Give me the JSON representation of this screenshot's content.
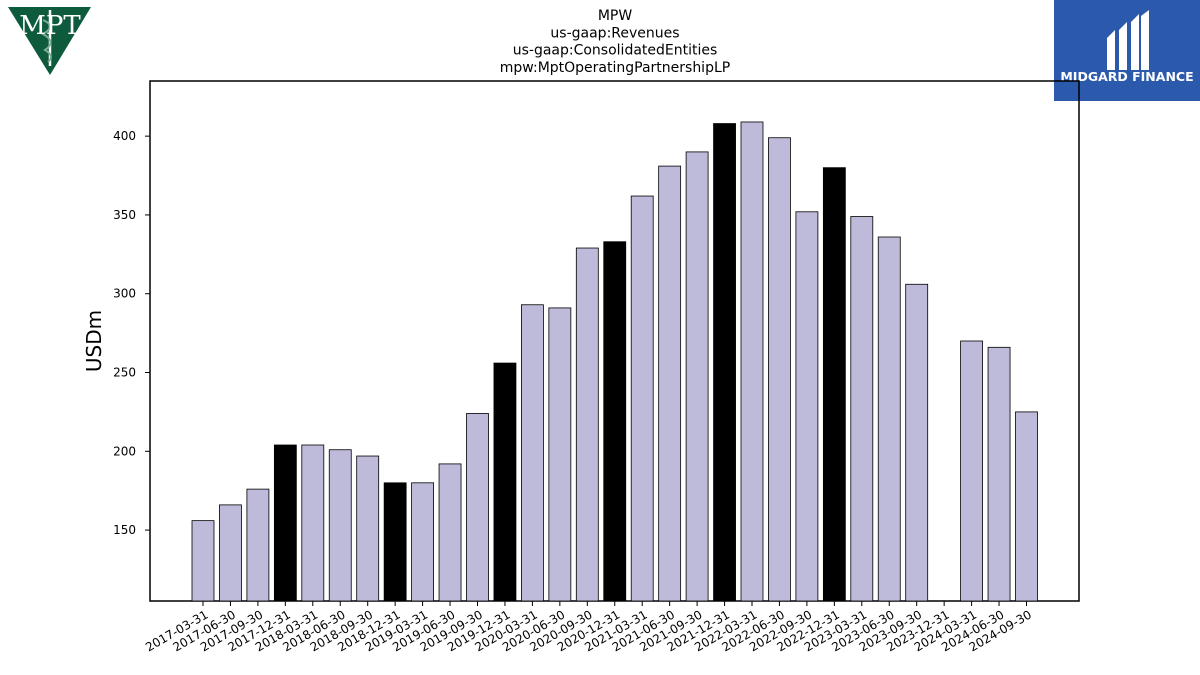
{
  "logos": {
    "left": {
      "text": "MPT",
      "color": "#0e5a3c"
    },
    "right": {
      "text": "MIDGARD FINANCE",
      "color": "#2b5aad"
    }
  },
  "colors": {
    "bar_normal": "#bebad9",
    "bar_highlight": "#000000",
    "bar_edge": "#000000"
  },
  "chart_data": {
    "type": "bar",
    "title": [
      "MPW",
      "us-gaap:Revenues",
      "us-gaap:ConsolidatedEntities",
      "mpw:MptOperatingPartnershipLP"
    ],
    "xlabel": "",
    "ylabel": "USDm",
    "ylim": [
      105,
      435
    ],
    "yticks": [
      150,
      200,
      250,
      300,
      350,
      400
    ],
    "grid": false,
    "categories": [
      "2017-03-31",
      "2017-06-30",
      "2017-09-30",
      "2017-12-31",
      "2018-03-31",
      "2018-06-30",
      "2018-09-30",
      "2018-12-31",
      "2019-03-31",
      "2019-06-30",
      "2019-09-30",
      "2019-12-31",
      "2020-03-31",
      "2020-06-30",
      "2020-09-30",
      "2020-12-31",
      "2021-03-31",
      "2021-06-30",
      "2021-09-30",
      "2021-12-31",
      "2022-03-31",
      "2022-06-30",
      "2022-09-30",
      "2022-12-31",
      "2023-03-31",
      "2023-06-30",
      "2023-09-30",
      "2023-12-31",
      "2024-03-31",
      "2024-06-30",
      "2024-09-30"
    ],
    "values": [
      156,
      166,
      176,
      204,
      204,
      201,
      197,
      180,
      180,
      192,
      224,
      256,
      293,
      291,
      329,
      333,
      362,
      381,
      390,
      408,
      409,
      399,
      352,
      380,
      349,
      336,
      306,
      null,
      270,
      266,
      225
    ],
    "highlight": [
      false,
      false,
      false,
      true,
      false,
      false,
      false,
      true,
      false,
      false,
      false,
      true,
      false,
      false,
      false,
      true,
      false,
      false,
      false,
      true,
      false,
      false,
      false,
      true,
      false,
      false,
      false,
      true,
      false,
      false,
      false
    ]
  }
}
